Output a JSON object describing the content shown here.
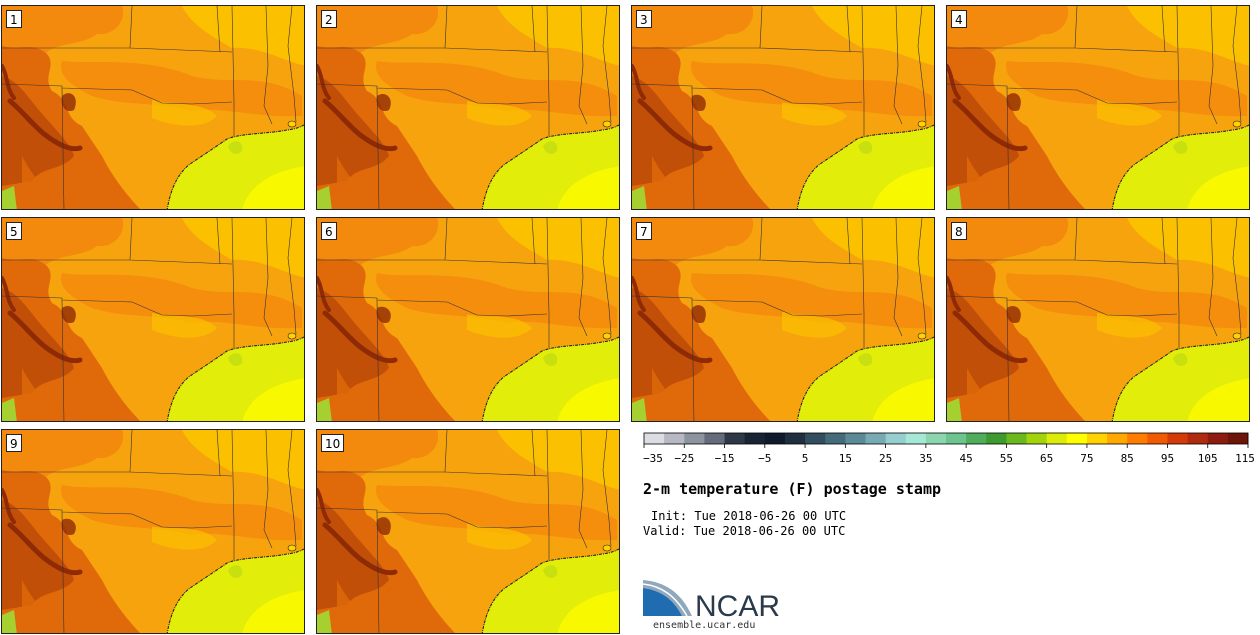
{
  "members": [
    "1",
    "2",
    "3",
    "4",
    "5",
    "6",
    "7",
    "8",
    "9",
    "10"
  ],
  "colorbar": {
    "ticks": [
      "−35",
      "−25",
      "−15",
      "−5",
      "5",
      "15",
      "25",
      "35",
      "45",
      "55",
      "65",
      "75",
      "85",
      "95",
      "105",
      "115"
    ],
    "colors": [
      "#dcdce4",
      "#b8b8c4",
      "#8c94a0",
      "#646c7c",
      "#2e3848",
      "#182434",
      "#0f1a2a",
      "#1f2f3e",
      "#314d5e",
      "#456b7a",
      "#5b8a96",
      "#78aab2",
      "#96cdcd",
      "#a6e8d8",
      "#8bd6ae",
      "#6ec48e",
      "#50ad5c",
      "#3c9a2f",
      "#6ab81e",
      "#a2d40e",
      "#dcec0a",
      "#ffff00",
      "#ffd200",
      "#ffa800",
      "#ff7c00",
      "#f05a00",
      "#d43a0a",
      "#b02a10",
      "#8c1c10",
      "#6e1408"
    ]
  },
  "map_colors": {
    "base": "#f7a30e",
    "warm": "#f48a0d",
    "hot": "#e06a0a",
    "hotter": "#c24f08",
    "hottest": "#8e2a04",
    "cool": "#fbc000",
    "gulf": "#e2ee0a",
    "gulf_south": "#f8f800",
    "gulf_patch": "#c8e010",
    "lake": "#ffd200"
  },
  "title": "2-m temperature (F) postage stamp",
  "init": "Init: Tue 2018-06-26 00 UTC",
  "valid": "Valid: Tue 2018-06-26 00 UTC",
  "logo_text": "NCAR",
  "url": "ensemble.ucar.edu"
}
